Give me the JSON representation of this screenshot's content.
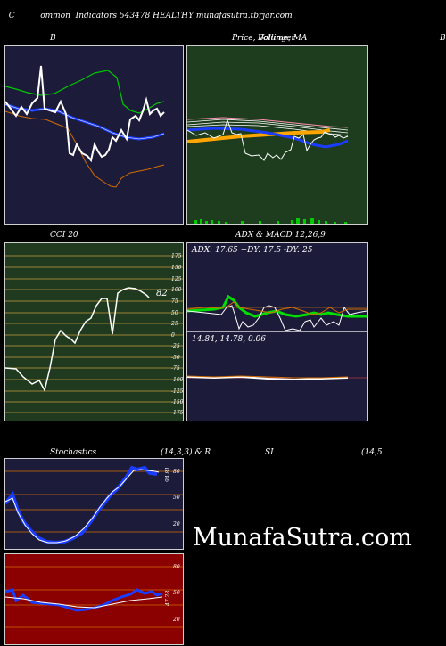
{
  "header": {
    "left_letter": "C",
    "title": "ommon  Indicators 543478 HEALTHY munafasutra.tbrjar.com"
  },
  "panels": {
    "bollinger": {
      "title": "B"
    },
    "price": {
      "title": "Price,  Volume,  MA",
      "overlay": "Bollinger",
      "right_letter": "B"
    },
    "cci": {
      "title": "CCI 20",
      "value": "82",
      "ticks": [
        "175",
        "150",
        "125",
        "100",
        "75",
        "50",
        "25",
        "0",
        "-25",
        "-50",
        "-75",
        "-100",
        "-125",
        "-150",
        "-175"
      ]
    },
    "adx": {
      "title": "ADX  & MACD 12,26,9",
      "adx_text": "ADX: 17.65  +DY: 17.5  -DY: 25",
      "macd_text": "14.84,  14.78,  0.06"
    },
    "stochastics": {
      "title": "Stochastics",
      "params": "(14,3,3) & R",
      "rsi_label": "SI",
      "rsi_params": "(14,5",
      "value": "94.81",
      "ticks": [
        "80",
        "50",
        "20"
      ]
    },
    "rsi": {
      "value": "47.28",
      "ticks": [
        "80",
        "50",
        "20"
      ]
    }
  },
  "watermark": "MunafaSutra.com",
  "colors": {
    "navy": "#1c1c3a",
    "green_panel": "#1e3d1e",
    "cci_bg": "#1f3a1f",
    "rsi_bg": "#8b0000",
    "blue": "#1a3cff",
    "green_line": "#00c800",
    "orange": "#d26b00",
    "white": "#ffffff"
  }
}
